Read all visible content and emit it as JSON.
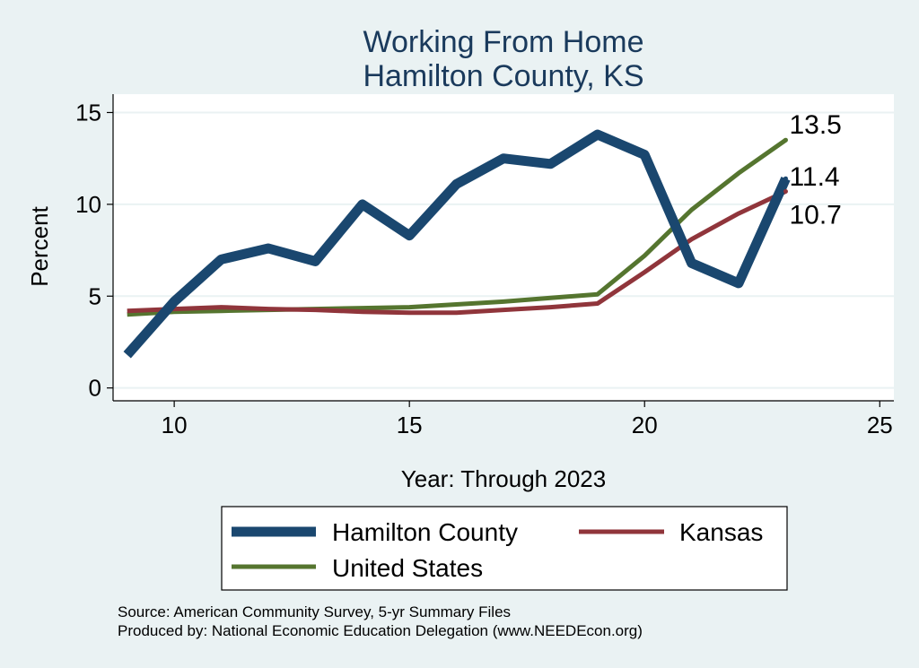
{
  "chart_data": {
    "type": "line",
    "title": [
      "Working From Home",
      "Hamilton County, KS"
    ],
    "xlabel": "Year: Through 2023",
    "ylabel": "Percent",
    "xlim": [
      8.7,
      25.3
    ],
    "ylim": [
      -0.7,
      16
    ],
    "xticks": [
      10,
      15,
      20,
      25
    ],
    "yticks": [
      0,
      5,
      10,
      15
    ],
    "grid": true,
    "legend_position": "bottom",
    "series": [
      {
        "name": "Hamilton County",
        "color": "#1a476f",
        "x": [
          9,
          10,
          11,
          12,
          13,
          14,
          15,
          16,
          17,
          18,
          19,
          20,
          21,
          22,
          23
        ],
        "values": [
          1.8,
          4.7,
          7.0,
          7.6,
          6.9,
          10.0,
          8.3,
          11.1,
          12.5,
          12.2,
          13.8,
          12.7,
          6.8,
          5.7,
          11.4
        ],
        "end_label": "11.4"
      },
      {
        "name": "Kansas",
        "color": "#90353b",
        "x": [
          9,
          10,
          11,
          12,
          13,
          14,
          15,
          16,
          17,
          18,
          19,
          20,
          21,
          22,
          23
        ],
        "values": [
          4.2,
          4.3,
          4.4,
          4.3,
          4.25,
          4.15,
          4.1,
          4.1,
          4.25,
          4.4,
          4.6,
          6.3,
          8.1,
          9.5,
          10.7
        ],
        "end_label": "10.7"
      },
      {
        "name": "United States",
        "color": "#55752f",
        "x": [
          9,
          10,
          11,
          12,
          13,
          14,
          15,
          16,
          17,
          18,
          19,
          20,
          21,
          22,
          23
        ],
        "values": [
          4.0,
          4.15,
          4.2,
          4.25,
          4.3,
          4.35,
          4.4,
          4.55,
          4.7,
          4.9,
          5.1,
          7.2,
          9.7,
          11.7,
          13.5
        ],
        "end_label": "13.5"
      }
    ],
    "notes": [
      "Source: American Community Survey, 5-yr Summary Files",
      "Produced by: National Economic Education Delegation (www.NEEDEcon.org)"
    ]
  }
}
